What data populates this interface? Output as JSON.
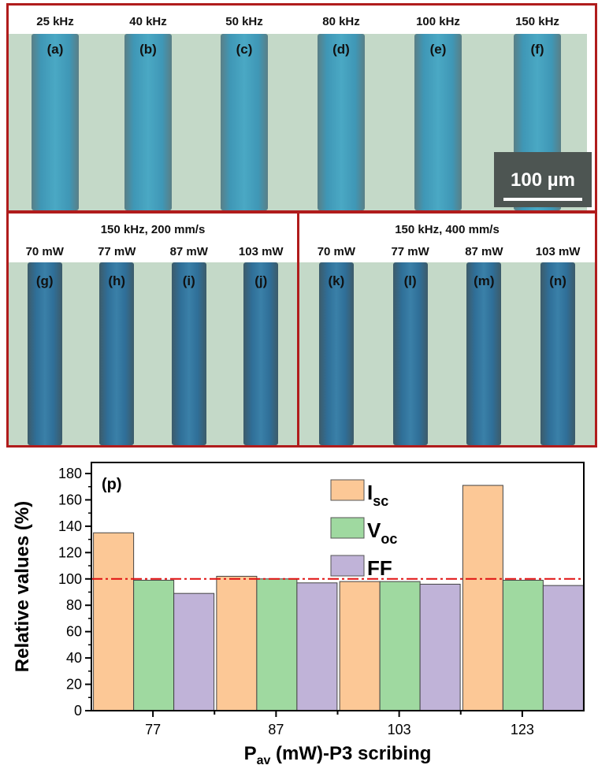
{
  "top_panel": {
    "labels": [
      "25 kHz",
      "40 kHz",
      "50 kHz",
      "80 kHz",
      "100 kHz",
      "150 kHz"
    ],
    "subs": [
      "(a)",
      "(b)",
      "(c)",
      "(d)",
      "(e)",
      "(f)"
    ],
    "scale_bar": "100 µm"
  },
  "left_panel": {
    "title": "150 kHz, 200 mm/s",
    "labels": [
      "70 mW",
      "77 mW",
      "87 mW",
      "103 mW"
    ],
    "subs": [
      "(g)",
      "(h)",
      "(i)",
      "(j)"
    ]
  },
  "right_panel": {
    "title": "150 kHz, 400 mm/s",
    "labels": [
      "70 mW",
      "77 mW",
      "87 mW",
      "103 mW"
    ],
    "subs": [
      "(k)",
      "(l)",
      "(m)",
      "(n)"
    ]
  },
  "chart_data": {
    "type": "bar",
    "panel_label": "(p)",
    "categories": [
      "77",
      "87",
      "103",
      "123"
    ],
    "series": [
      {
        "name": "Isc",
        "label_main": "I",
        "label_sub": "sc",
        "color": "#fcc896",
        "values": [
          135,
          102,
          98,
          171
        ]
      },
      {
        "name": "Voc",
        "label_main": "V",
        "label_sub": "oc",
        "color": "#9fd9a0",
        "values": [
          99,
          100,
          98,
          99
        ]
      },
      {
        "name": "FF",
        "label_main": "FF",
        "label_sub": "",
        "color": "#c0b3d8",
        "values": [
          89,
          97,
          96,
          95
        ]
      }
    ],
    "reference_line": {
      "value": 100,
      "color": "#e01010",
      "style": "dash-dot"
    },
    "ylim": [
      0,
      180
    ],
    "yticks": [
      0,
      20,
      40,
      60,
      80,
      100,
      120,
      140,
      160,
      180
    ],
    "ylabel": "Relative values (%)",
    "xlabel_main": "P",
    "xlabel_sub": "av",
    "xlabel_rest": " (mW)-P3 scribing",
    "legend": "top-center",
    "grid": false
  }
}
